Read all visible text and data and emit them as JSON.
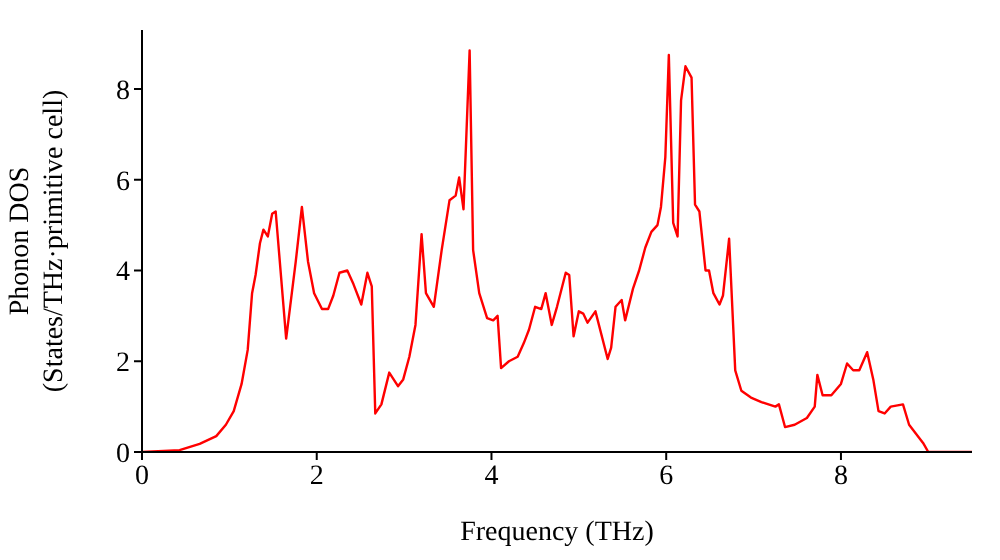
{
  "chart_data": {
    "type": "line",
    "xlabel": "Frequency (THz)",
    "ylabel": "Phonon DOS\n(States/THz·primitive cell)",
    "x": [
      0,
      0.43,
      0.66,
      0.85,
      0.96,
      1.05,
      1.14,
      1.21,
      1.26,
      1.3,
      1.35,
      1.39,
      1.44,
      1.49,
      1.53,
      1.65,
      1.76,
      1.83,
      1.9,
      1.97,
      2.06,
      2.13,
      2.19,
      2.26,
      2.35,
      2.42,
      2.51,
      2.58,
      2.63,
      2.67,
      2.74,
      2.83,
      2.93,
      2.99,
      3.06,
      3.13,
      3.2,
      3.25,
      3.34,
      3.43,
      3.52,
      3.59,
      3.63,
      3.68,
      3.75,
      3.79,
      3.86,
      3.95,
      4.02,
      4.07,
      4.11,
      4.2,
      4.3,
      4.37,
      4.43,
      4.5,
      4.57,
      4.62,
      4.69,
      4.75,
      4.85,
      4.89,
      4.94,
      5.0,
      5.05,
      5.1,
      5.19,
      5.33,
      5.37,
      5.42,
      5.49,
      5.53,
      5.62,
      5.69,
      5.76,
      5.83,
      5.9,
      5.94,
      5.99,
      6.03,
      6.08,
      6.13,
      6.17,
      6.22,
      6.29,
      6.33,
      6.38,
      6.45,
      6.49,
      6.54,
      6.61,
      6.65,
      6.72,
      6.79,
      6.86,
      6.97,
      7.09,
      7.25,
      7.29,
      7.36,
      7.47,
      7.61,
      7.7,
      7.73,
      7.79,
      7.89,
      8.0,
      8.07,
      8.14,
      8.21,
      8.3,
      8.37,
      8.43,
      8.5,
      8.57,
      8.71,
      8.78,
      8.94,
      9.0,
      9.5
    ],
    "series": [
      {
        "color": "#ff0000",
        "values": [
          0,
          0.04,
          0.18,
          0.35,
          0.6,
          0.9,
          1.5,
          2.25,
          3.5,
          3.9,
          4.6,
          4.9,
          4.75,
          5.25,
          5.3,
          2.5,
          4.2,
          5.4,
          4.2,
          3.5,
          3.15,
          3.15,
          3.45,
          3.95,
          4.0,
          3.7,
          3.25,
          3.95,
          3.65,
          0.85,
          1.05,
          1.75,
          1.45,
          1.6,
          2.1,
          2.8,
          4.8,
          3.5,
          3.2,
          4.45,
          5.55,
          5.65,
          6.05,
          5.35,
          8.85,
          4.45,
          3.5,
          2.95,
          2.9,
          3.0,
          1.85,
          2.0,
          2.1,
          2.4,
          2.7,
          3.2,
          3.15,
          3.5,
          2.8,
          3.2,
          3.95,
          3.9,
          2.55,
          3.1,
          3.05,
          2.85,
          3.1,
          2.05,
          2.3,
          3.2,
          3.35,
          2.9,
          3.6,
          4.0,
          4.5,
          4.85,
          5.0,
          5.4,
          6.5,
          8.75,
          5.05,
          4.75,
          7.75,
          8.5,
          8.25,
          5.45,
          5.3,
          4.0,
          4.0,
          3.5,
          3.25,
          3.45,
          4.7,
          1.8,
          1.35,
          1.2,
          1.1,
          1.0,
          1.05,
          0.55,
          0.6,
          0.75,
          1.0,
          1.7,
          1.25,
          1.25,
          1.5,
          1.95,
          1.8,
          1.8,
          2.2,
          1.6,
          0.9,
          0.85,
          1.0,
          1.05,
          0.6,
          0.2,
          0,
          0
        ]
      }
    ],
    "xlim": [
      0,
      9.5
    ],
    "ylim": [
      0,
      9.3
    ],
    "xticks": [
      0,
      2,
      4,
      6,
      8
    ],
    "yticks": [
      0,
      2,
      4,
      6,
      8
    ],
    "grid": false,
    "legend": false,
    "marker": "none",
    "line_style": "solid"
  }
}
